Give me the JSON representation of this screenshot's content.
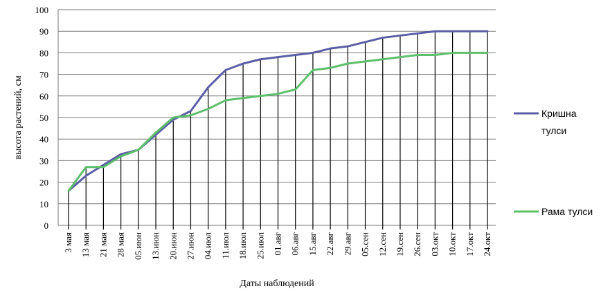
{
  "chart_data": {
    "type": "line",
    "xlabel": "Даты наблюдений",
    "ylabel": "высота растений, см",
    "ylim": [
      0,
      100
    ],
    "yticks": [
      0,
      10,
      20,
      30,
      40,
      50,
      60,
      70,
      80,
      90,
      100
    ],
    "grid": true,
    "legend_position": "right",
    "categories": [
      "3 мая",
      "13 мая",
      "21 мая",
      "28 мая",
      "05.июн",
      "13.июн",
      "20.июн",
      "27.июн",
      "04.июл",
      "11.июл",
      "18.июл",
      "25.июл",
      "01.авг",
      "06.авг",
      "15.авг",
      "22.авг",
      "29.авг",
      "05.сен",
      "12.сен",
      "19.сен",
      "26.сен",
      "03.окт",
      "10.окт",
      "17.окт",
      "24.окт"
    ],
    "series": [
      {
        "name_lines": [
          "Кришна",
          "тулси"
        ],
        "color": "#5b5ea6",
        "values": [
          16,
          23,
          28,
          33,
          35,
          42,
          49,
          53,
          64,
          72,
          75,
          77,
          78,
          79,
          80,
          82,
          83,
          85,
          87,
          88,
          89,
          90,
          90,
          90,
          90
        ]
      },
      {
        "name_lines": [
          "Рама тулси"
        ],
        "color": "#5cbf6a",
        "values": [
          16,
          27,
          27,
          32,
          35,
          43,
          50,
          51,
          54,
          58,
          59,
          60,
          61,
          63,
          72,
          73,
          75,
          76,
          77,
          78,
          79,
          79,
          80,
          80,
          80
        ]
      }
    ]
  }
}
